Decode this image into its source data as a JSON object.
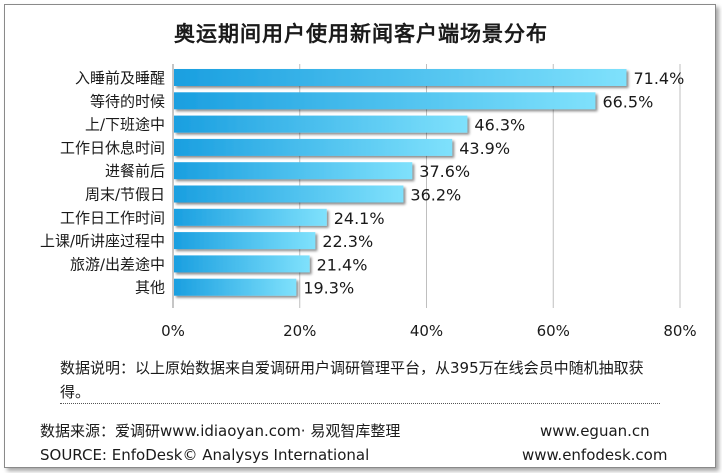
{
  "chart_data": {
    "type": "bar",
    "orientation": "horizontal",
    "title": "奥运期间用户使用新闻客户端场景分布",
    "categories": [
      "入睡前及睡醒",
      "等待的时候",
      "上/下班途中",
      "工作日休息时间",
      "进餐前后",
      "周末/节假日",
      "工作日工作时间",
      "上课/听讲座过程中",
      "旅游/出差途中",
      "其他"
    ],
    "values": [
      71.4,
      66.5,
      46.3,
      43.9,
      37.6,
      36.2,
      24.1,
      22.3,
      21.4,
      19.3
    ],
    "value_labels": [
      "71.4%",
      "66.5%",
      "46.3%",
      "43.9%",
      "37.6%",
      "36.2%",
      "24.1%",
      "22.3%",
      "21.4%",
      "19.3%"
    ],
    "x_ticks": [
      "0%",
      "20%",
      "40%",
      "60%",
      "80%"
    ],
    "xlim": [
      0,
      80
    ],
    "grid": "vertical",
    "bar_color_start": "#1a9fe0",
    "bar_color_end": "#7fe1fc"
  },
  "footer": {
    "note": "数据说明：以上原始数据来自爱调研用户调研管理平台，从395万在线会员中随机抽取获得。",
    "source_cn": "数据来源：爱调研www.idiaoyan.com· 易观智库整理",
    "source_en": "SOURCE: EnfoDesk© Analysys International",
    "site1": "www.eguan.cn",
    "site2": "www.enfodesk.com"
  }
}
